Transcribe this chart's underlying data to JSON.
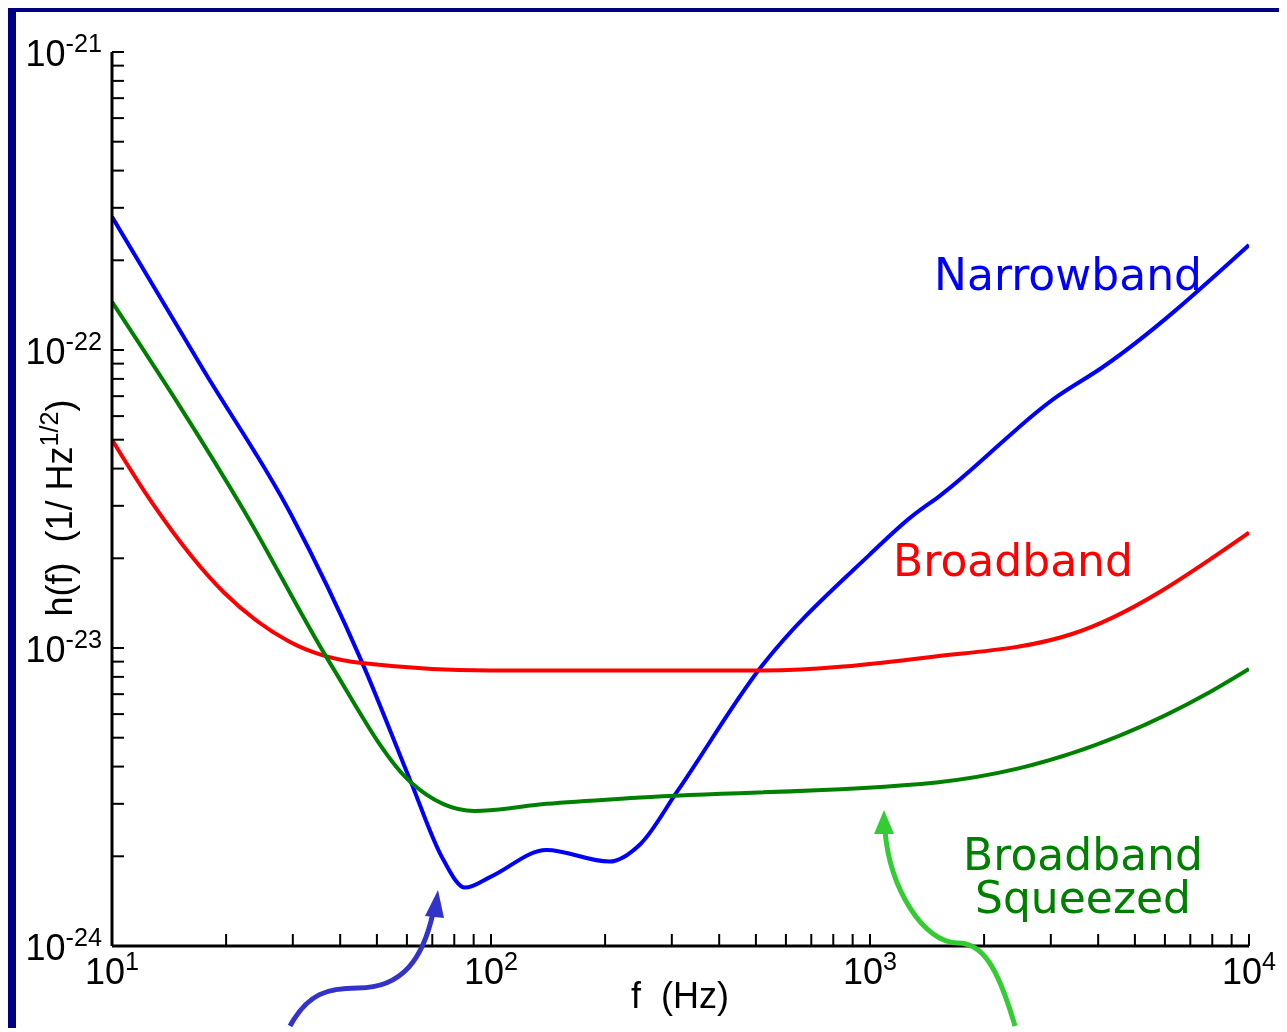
{
  "chart_data": {
    "type": "line",
    "xlabel": "f  (Hz)",
    "ylabel": "h(f)  (1/ Hz$^{1/2}$)",
    "log": "xy",
    "marker": "none",
    "line_style": "solid",
    "xlim": [
      10,
      10000
    ],
    "ylim": [
      1e-24,
      1e-21
    ],
    "xticks": [
      {
        "value": 10,
        "label": "10$^{1}$"
      },
      {
        "value": 20,
        "label": null
      },
      {
        "value": 30,
        "label": null
      },
      {
        "value": 40,
        "label": null
      },
      {
        "value": 50,
        "label": null
      },
      {
        "value": 60,
        "label": null
      },
      {
        "value": 70,
        "label": null
      },
      {
        "value": 80,
        "label": null
      },
      {
        "value": 90,
        "label": null
      },
      {
        "value": 100,
        "label": "10$^{2}$"
      },
      {
        "value": 200,
        "label": null
      },
      {
        "value": 300,
        "label": null
      },
      {
        "value": 400,
        "label": null
      },
      {
        "value": 500,
        "label": null
      },
      {
        "value": 600,
        "label": null
      },
      {
        "value": 700,
        "label": null
      },
      {
        "value": 800,
        "label": null
      },
      {
        "value": 900,
        "label": null
      },
      {
        "value": 1000,
        "label": "10$^{3}$"
      },
      {
        "value": 2000,
        "label": null
      },
      {
        "value": 3000,
        "label": null
      },
      {
        "value": 4000,
        "label": null
      },
      {
        "value": 5000,
        "label": null
      },
      {
        "value": 6000,
        "label": null
      },
      {
        "value": 7000,
        "label": null
      },
      {
        "value": 8000,
        "label": null
      },
      {
        "value": 9000,
        "label": null
      },
      {
        "value": 10000,
        "label": "10$^{4}$"
      }
    ],
    "yticks": [
      {
        "value": 1e-24,
        "label": "10$^{-24}$"
      },
      {
        "value": 2e-24,
        "label": null
      },
      {
        "value": 3e-24,
        "label": null
      },
      {
        "value": 4e-24,
        "label": null
      },
      {
        "value": 5e-24,
        "label": null
      },
      {
        "value": 6e-24,
        "label": null
      },
      {
        "value": 7e-24,
        "label": null
      },
      {
        "value": 8e-24,
        "label": null
      },
      {
        "value": 9e-24,
        "label": null
      },
      {
        "value": 1e-23,
        "label": "10$^{-23}$"
      },
      {
        "value": 2e-23,
        "label": null
      },
      {
        "value": 3e-23,
        "label": null
      },
      {
        "value": 4e-23,
        "label": null
      },
      {
        "value": 5e-23,
        "label": null
      },
      {
        "value": 6e-23,
        "label": null
      },
      {
        "value": 7e-23,
        "label": null
      },
      {
        "value": 8e-23,
        "label": null
      },
      {
        "value": 9e-23,
        "label": null
      },
      {
        "value": 1e-22,
        "label": "10$^{-22}$"
      },
      {
        "value": 2e-22,
        "label": null
      },
      {
        "value": 3e-22,
        "label": null
      },
      {
        "value": 4e-22,
        "label": null
      },
      {
        "value": 5e-22,
        "label": null
      },
      {
        "value": 6e-22,
        "label": null
      },
      {
        "value": 7e-22,
        "label": null
      },
      {
        "value": 8e-22,
        "label": null
      },
      {
        "value": 9e-22,
        "label": null
      },
      {
        "value": 1e-21,
        "label": "10$^{-21}$"
      }
    ],
    "series": [
      {
        "name": "Narrowband",
        "color": "#0000ff",
        "x": [
          10,
          17.5,
          29.7,
          45.6,
          61.2,
          74.8,
          85.4,
          100,
          140,
          205,
          248,
          310,
          511,
          995,
          1282,
          1528,
          3126,
          4080,
          10000
        ],
        "values": [
          2.8e-22,
          8.5e-23,
          2.8e-23,
          9e-24,
          3.6e-24,
          1.95e-24,
          1.57e-24,
          1.71e-24,
          2.1e-24,
          1.92e-24,
          2.2e-24,
          3.3e-24,
          8.5e-24,
          2.05e-23,
          2.75e-23,
          3.24e-23,
          7e-23,
          8.7e-23,
          2.25e-22
        ]
      },
      {
        "name": "Broadband",
        "color": "#ff0000",
        "x": [
          10,
          12.4,
          19.8,
          29.4,
          45.6,
          100,
          243,
          511,
          1413,
          3380,
          10000
        ],
        "values": [
          5e-23,
          3.24e-23,
          1.53e-23,
          1.05e-23,
          8.9e-24,
          8.4e-24,
          8.4e-24,
          8.4e-24,
          9.3e-24,
          1.11e-23,
          2.44e-23
        ]
      },
      {
        "name": "Broadband Squeezed",
        "color": "#008000",
        "x": [
          10,
          22.7,
          37.6,
          61.2,
          90.6,
          140,
          248,
          1497,
          7870,
          10000
        ],
        "values": [
          1.45e-22,
          2.78e-23,
          8.9e-24,
          3.56e-24,
          2.84e-24,
          3e-24,
          3.15e-24,
          3.54e-24,
          7.1e-24,
          8.5e-24
        ]
      }
    ]
  }
}
